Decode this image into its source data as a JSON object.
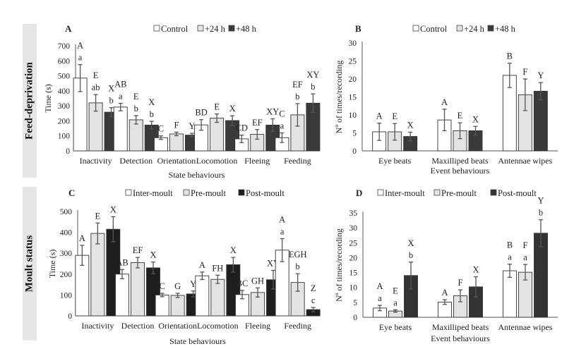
{
  "rows": [
    {
      "label": "Feed-deprivation"
    },
    {
      "label": "Moult status"
    }
  ],
  "chart_data": [
    {
      "panel": "A",
      "type": "bar",
      "xlabel": "State behaviours",
      "ylabel": "Time (s)",
      "ylim": [
        0,
        700
      ],
      "yticks": [
        0,
        100,
        200,
        300,
        400,
        500,
        600,
        700
      ],
      "legend": "top",
      "categories": [
        "Inactivity",
        "Detection",
        "Orientation",
        "Locomotion",
        "Fleeing",
        "Feeding"
      ],
      "series": [
        {
          "name": "Control",
          "color": "#ffffff",
          "values": [
            485,
            292,
            88,
            173,
            80,
            88
          ],
          "errors": [
            90,
            25,
            12,
            35,
            25,
            32
          ]
        },
        {
          "name": "+24 h",
          "color": "#e3e3e3",
          "values": [
            320,
            207,
            113,
            218,
            110,
            240
          ],
          "errors": [
            55,
            28,
            12,
            28,
            32,
            75
          ]
        },
        {
          "name": "+48 h",
          "color": "#3a3a3a",
          "values": [
            258,
            172,
            105,
            202,
            172,
            318
          ],
          "errors": [
            30,
            25,
            12,
            32,
            42,
            62
          ]
        }
      ],
      "annotations": [
        [
          [
            "A",
            "a"
          ],
          [
            "E",
            "ab"
          ],
          [
            "X",
            "b"
          ]
        ],
        [
          [
            "AB",
            "a"
          ],
          [
            "E",
            "b"
          ],
          [
            "X",
            "b"
          ]
        ],
        [
          [
            "C"
          ],
          [
            "F"
          ],
          [
            "Y"
          ]
        ],
        [
          [
            "BD"
          ],
          [
            "E"
          ],
          [
            "X"
          ]
        ],
        [
          [
            "CD"
          ],
          [
            "EF"
          ],
          [
            "XY"
          ]
        ],
        [
          [
            "C",
            "a"
          ],
          [
            "EF",
            "b"
          ],
          [
            "XY",
            "b"
          ]
        ]
      ]
    },
    {
      "panel": "B",
      "type": "bar",
      "xlabel": "Event behaviours",
      "ylabel": "Nº of times/recording",
      "ylim": [
        0,
        30
      ],
      "yticks": [
        0,
        5,
        10,
        15,
        20,
        25,
        30
      ],
      "legend": "top",
      "categories": [
        "Eye beats",
        "Maxilliped beats",
        "Antennae wipes"
      ],
      "series": [
        {
          "name": "Control",
          "color": "#ffffff",
          "values": [
            5.3,
            8.6,
            21.0
          ],
          "errors": [
            2.4,
            3.0,
            3.4
          ]
        },
        {
          "name": "+24 h",
          "color": "#e3e3e3",
          "values": [
            5.3,
            5.6,
            15.6
          ],
          "errors": [
            2.3,
            2.2,
            4.4
          ]
        },
        {
          "name": "+48 h",
          "color": "#3a3a3a",
          "values": [
            4.0,
            5.6,
            16.6
          ],
          "errors": [
            1.2,
            1.2,
            2.4
          ]
        }
      ],
      "annotations": [
        [
          [
            "A"
          ],
          [
            "E"
          ],
          [
            "X"
          ]
        ],
        [
          [
            "A"
          ],
          [
            "E"
          ],
          [
            "X"
          ]
        ],
        [
          [
            "B"
          ],
          [
            "F"
          ],
          [
            "Y"
          ]
        ]
      ]
    },
    {
      "panel": "C",
      "type": "bar",
      "xlabel": "State behaviours",
      "ylabel": "Time (s)",
      "ylim": [
        0,
        500
      ],
      "yticks": [
        0,
        100,
        200,
        300,
        400,
        500
      ],
      "legend": "top",
      "categories": [
        "Inactivity",
        "Detection",
        "Orientation",
        "Locomotion",
        "Fleeing",
        "Feeding"
      ],
      "series": [
        {
          "name": "Inter-moult",
          "color": "#ffffff",
          "values": [
            290,
            200,
            100,
            192,
            102,
            315
          ],
          "errors": [
            48,
            22,
            8,
            18,
            20,
            55
          ]
        },
        {
          "name": "Pre-moult",
          "color": "#e3e3e3",
          "values": [
            395,
            255,
            98,
            175,
            112,
            160
          ],
          "errors": [
            50,
            25,
            10,
            20,
            22,
            42
          ]
        },
        {
          "name": "Post-moult",
          "color": "#1e1e1e",
          "values": [
            415,
            230,
            105,
            245,
            173,
            30
          ],
          "errors": [
            60,
            28,
            14,
            35,
            45,
            10
          ]
        }
      ],
      "annotations": [
        [
          [
            "A"
          ],
          [
            "E"
          ],
          [
            "X"
          ]
        ],
        [
          [
            "AB"
          ],
          [
            "EF"
          ],
          [
            "X"
          ]
        ],
        [
          [
            "C"
          ],
          [
            "G"
          ],
          [
            "Y"
          ]
        ],
        [
          [
            "A"
          ],
          [
            "FH"
          ],
          [
            "X"
          ]
        ],
        [
          [
            "BC"
          ],
          [
            "GH"
          ],
          [
            "XY"
          ]
        ],
        [
          [
            "A",
            "a"
          ],
          [
            "EGH",
            "b"
          ],
          [
            "Z",
            "c"
          ]
        ]
      ]
    },
    {
      "panel": "D",
      "type": "bar",
      "xlabel": "Event behaviours",
      "ylabel": "Nº of times/recording",
      "ylim": [
        0,
        35
      ],
      "yticks": [
        0,
        5,
        10,
        15,
        20,
        25,
        30,
        35
      ],
      "legend": "top",
      "categories": [
        "Eye beats",
        "Maxilliped beats",
        "Antennae wipes"
      ],
      "series": [
        {
          "name": "Inter-moult",
          "color": "#ffffff",
          "values": [
            3.1,
            5.1,
            15.6
          ],
          "errors": [
            0.9,
            0.8,
            2.2
          ]
        },
        {
          "name": "Pre-moult",
          "color": "#e3e3e3",
          "values": [
            2.1,
            7.2,
            15.1
          ],
          "errors": [
            0.4,
            2.0,
            2.6
          ]
        },
        {
          "name": "Post-moult",
          "color": "#333333",
          "values": [
            14.0,
            10.2,
            28.2
          ],
          "errors": [
            4.5,
            3.4,
            4.5
          ]
        }
      ],
      "annotations": [
        [
          [
            "A",
            "a"
          ],
          [
            "E",
            "a"
          ],
          [
            "X",
            "b"
          ]
        ],
        [
          [
            "A"
          ],
          [
            "F"
          ],
          [
            "X"
          ]
        ],
        [
          [
            "B",
            "a"
          ],
          [
            "F",
            "a"
          ],
          [
            "Y",
            "b"
          ]
        ]
      ]
    }
  ]
}
